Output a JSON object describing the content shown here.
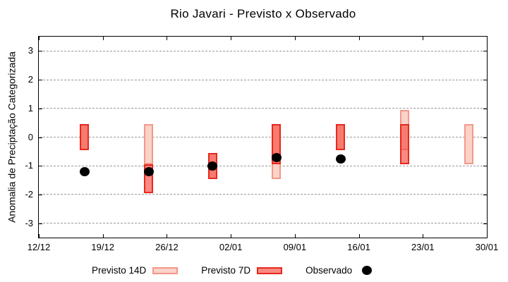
{
  "title": "Rio Javari - Previsto x Observado",
  "chart_data": {
    "type": "bar",
    "title": "Rio Javari - Previsto x Observado",
    "xlabel": "",
    "ylabel": "Anomalia de Preciptação Categorizada",
    "ylim": [
      -3.5,
      3.5
    ],
    "grid": true,
    "legend_position": "below",
    "x_ticks": [
      {
        "label": "12/12",
        "day": 0
      },
      {
        "label": "19/12",
        "day": 7
      },
      {
        "label": "26/12",
        "day": 14
      },
      {
        "label": "02/01",
        "day": 21
      },
      {
        "label": "09/01",
        "day": 28
      },
      {
        "label": "16/01",
        "day": 35
      },
      {
        "label": "23/01",
        "day": 42
      },
      {
        "label": "30/01",
        "day": 49
      }
    ],
    "y_ticks": [
      3,
      2,
      1,
      0,
      -1,
      -2,
      -3
    ],
    "series": [
      {
        "name": "Previsto 14D",
        "kind": "range-bar",
        "fill": "#fbd2c8",
        "border": "#f2988a",
        "points": [
          {
            "date": "17/12",
            "day": 5,
            "low": -0.45,
            "high": 0.45
          },
          {
            "date": "24/12",
            "day": 12,
            "low": -0.95,
            "high": 0.45
          },
          {
            "date": "31/12",
            "day": 19,
            "low": -1.45,
            "high": -0.55
          },
          {
            "date": "07/01",
            "day": 26,
            "low": -1.45,
            "high": 0.45
          },
          {
            "date": "14/01",
            "day": 33,
            "low": -0.45,
            "high": 0.45
          },
          {
            "date": "21/01",
            "day": 40,
            "low": -0.45,
            "high": 0.95
          },
          {
            "date": "28/01",
            "day": 47,
            "low": -0.95,
            "high": 0.45
          }
        ]
      },
      {
        "name": "Previsto 7D",
        "kind": "range-bar",
        "fill": "rgba(246,78,66,0.66)",
        "border": "#e6281e",
        "points": [
          {
            "date": "17/12",
            "day": 5,
            "low": -0.45,
            "high": 0.45
          },
          {
            "date": "24/12",
            "day": 12,
            "low": -1.95,
            "high": -0.95
          },
          {
            "date": "31/12",
            "day": 19,
            "low": -1.45,
            "high": -0.55
          },
          {
            "date": "07/01",
            "day": 26,
            "low": -0.95,
            "high": 0.45
          },
          {
            "date": "14/01",
            "day": 33,
            "low": -0.45,
            "high": 0.45
          },
          {
            "date": "21/01",
            "day": 40,
            "low": -0.95,
            "high": 0.45
          }
        ]
      },
      {
        "name": "Observado",
        "kind": "scatter",
        "color": "#000000",
        "points": [
          {
            "date": "17/12",
            "day": 5,
            "value": -1.2
          },
          {
            "date": "24/12",
            "day": 12,
            "value": -1.2
          },
          {
            "date": "31/12",
            "day": 19,
            "value": -1.0
          },
          {
            "date": "07/01",
            "day": 26,
            "value": -0.7
          },
          {
            "date": "14/01",
            "day": 33,
            "value": -0.75
          }
        ]
      }
    ]
  },
  "legend": {
    "items": [
      {
        "label": "Previsto 14D"
      },
      {
        "label": "Previsto 7D"
      },
      {
        "label": "Observado"
      }
    ]
  },
  "colors": {
    "grid": "#999999",
    "frame": "#000000"
  }
}
